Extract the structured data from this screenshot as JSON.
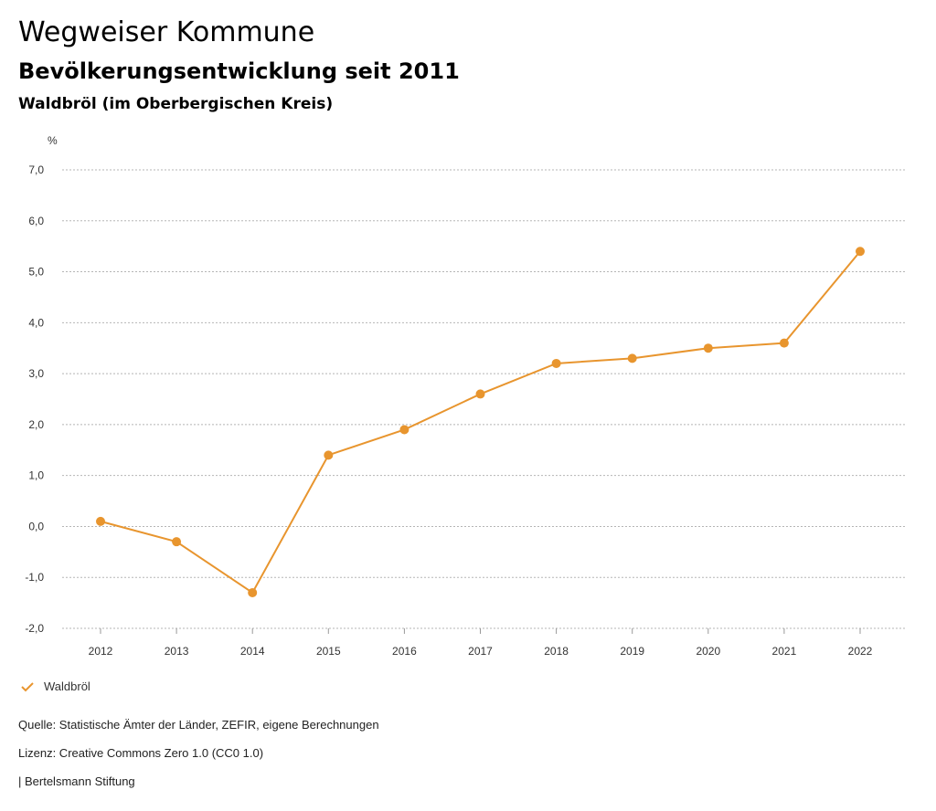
{
  "header": {
    "title": "Wegweiser Kommune",
    "subtitle": "Bevölkerungsentwicklung seit 2011",
    "region": "Waldbröl (im Oberbergischen Kreis)"
  },
  "chart_data": {
    "type": "line",
    "title": "Bevölkerungsentwicklung seit 2011",
    "ylabel": "%",
    "xlabel": "",
    "ylim": [
      -2.0,
      7.0
    ],
    "yticks": [
      "-2,0",
      "-1,0",
      "0,0",
      "1,0",
      "2,0",
      "3,0",
      "4,0",
      "5,0",
      "6,0",
      "7,0"
    ],
    "ytick_values": [
      -2,
      -1,
      0,
      1,
      2,
      3,
      4,
      5,
      6,
      7
    ],
    "categories": [
      "2012",
      "2013",
      "2014",
      "2015",
      "2016",
      "2017",
      "2018",
      "2019",
      "2020",
      "2021",
      "2022"
    ],
    "grid": true,
    "series": [
      {
        "name": "Waldbröl",
        "color": "#e8952e",
        "values": [
          0.1,
          -0.3,
          -1.3,
          1.4,
          1.9,
          2.6,
          3.2,
          3.3,
          3.5,
          3.6,
          5.4
        ]
      }
    ]
  },
  "legend": {
    "label": "Waldbröl",
    "color": "#e8952e"
  },
  "footer": {
    "source": "Quelle: Statistische Ämter der Länder, ZEFIR, eigene Berechnungen",
    "license": "Lizenz: Creative Commons Zero 1.0 (CC0 1.0)",
    "publisher": "| Bertelsmann Stiftung"
  }
}
